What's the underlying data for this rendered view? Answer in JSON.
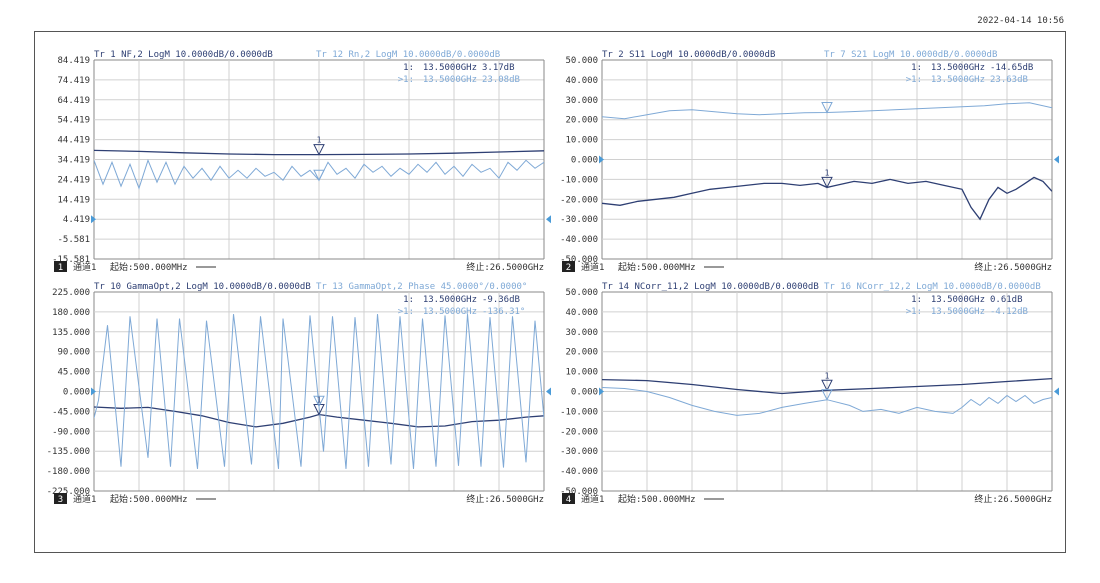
{
  "timestamp": "2022-04-14 10:56",
  "colors": {
    "dark": "#2e3f73",
    "light": "#7fa9d6",
    "grid": "#d0d0d0",
    "text": "#333333",
    "marker_arrow": "#4a9bd8"
  },
  "chart_data": [
    {
      "type": "line",
      "panel_number": "1",
      "channel_label": "通道1",
      "start_label": "起始:500.000MHz",
      "stop_label": "终止:26.5000GHz",
      "trace_dark_header": "Tr 1  NF,2 LogM 10.0000dB/0.0000dB",
      "trace_light_header": "Tr 12 Rn,2 LogM 10.0000dB/0.0000dB",
      "marker_dark": {
        "id": "1:",
        "freq": "13.5000GHz",
        "value": "3.17dB"
      },
      "marker_light": {
        "id": ">1:",
        "freq": "13.5000GHz",
        "value": "23.08dB"
      },
      "y_ticks": [
        "84.419",
        "74.419",
        "64.419",
        "54.419",
        "44.419",
        "34.419",
        "24.419",
        "14.419",
        "4.419",
        "-5.581",
        "-15.581"
      ],
      "ylim": [
        -15.581,
        84.419
      ],
      "reference_index": 8,
      "xlim": [
        0,
        100
      ],
      "series": [
        {
          "name": "Tr 1",
          "shade": "dark",
          "x": [
            0,
            10,
            20,
            30,
            40,
            50,
            60,
            70,
            80,
            90,
            100
          ],
          "y": [
            39.0,
            38.5,
            37.8,
            37.2,
            36.9,
            36.9,
            37.0,
            37.2,
            37.6,
            38.2,
            38.8
          ]
        },
        {
          "name": "Tr 12",
          "shade": "light",
          "x": [
            0,
            2,
            4,
            6,
            8,
            10,
            12,
            14,
            16,
            18,
            20,
            22,
            24,
            26,
            28,
            30,
            32,
            34,
            36,
            38,
            40,
            42,
            44,
            46,
            48,
            50,
            52,
            54,
            56,
            58,
            60,
            62,
            64,
            66,
            68,
            70,
            72,
            74,
            76,
            78,
            80,
            82,
            84,
            86,
            88,
            90,
            92,
            94,
            96,
            98,
            100
          ],
          "y": [
            34,
            22,
            33,
            21,
            32,
            20,
            34,
            23,
            33,
            22,
            31,
            25,
            30,
            24,
            31,
            25,
            29,
            25,
            30,
            26,
            28,
            24,
            31,
            26,
            29,
            24,
            33,
            27,
            30,
            25,
            32,
            28,
            31,
            26,
            30,
            27,
            32,
            28,
            33,
            27,
            31,
            26,
            32,
            28,
            30,
            25,
            33,
            29,
            34,
            30,
            33
          ]
        }
      ],
      "marker_x": 50
    },
    {
      "type": "line",
      "panel_number": "2",
      "channel_label": "通道1",
      "start_label": "起始:500.000MHz",
      "stop_label": "终止:26.5000GHz",
      "trace_dark_header": "Tr 2  S11 LogM 10.0000dB/0.0000dB",
      "trace_light_header": "Tr 7  S21 LogM 10.0000dB/0.0000dB",
      "marker_dark": {
        "id": "1:",
        "freq": "13.5000GHz",
        "value": "-14.65dB"
      },
      "marker_light": {
        "id": ">1:",
        "freq": "13.5000GHz",
        "value": "23.63dB"
      },
      "y_ticks": [
        "50.000",
        "40.000",
        "30.000",
        "20.000",
        "10.000",
        "0.000",
        "-10.000",
        "-20.000",
        "-30.000",
        "-40.000",
        "-50.000"
      ],
      "ylim": [
        -50,
        50
      ],
      "reference_index": 5,
      "xlim": [
        0,
        100
      ],
      "series": [
        {
          "name": "Tr 2",
          "shade": "dark",
          "x": [
            0,
            4,
            8,
            12,
            16,
            20,
            24,
            28,
            32,
            36,
            40,
            44,
            48,
            50,
            52,
            56,
            60,
            64,
            68,
            72,
            76,
            80,
            82,
            84,
            86,
            88,
            90,
            92,
            94,
            96,
            98,
            100
          ],
          "y": [
            -22,
            -23,
            -21,
            -20,
            -19,
            -17,
            -15,
            -14,
            -13,
            -12,
            -12,
            -13,
            -12,
            -14,
            -13,
            -11,
            -12,
            -10,
            -12,
            -11,
            -13,
            -15,
            -24,
            -30,
            -20,
            -14,
            -17,
            -15,
            -12,
            -9,
            -11,
            -16
          ]
        },
        {
          "name": "Tr 7",
          "shade": "light",
          "x": [
            0,
            5,
            10,
            15,
            20,
            25,
            30,
            35,
            40,
            45,
            50,
            55,
            60,
            65,
            70,
            75,
            80,
            85,
            90,
            95,
            100
          ],
          "y": [
            21.5,
            20.5,
            22.5,
            24.5,
            25.0,
            24.0,
            23.0,
            22.5,
            23.0,
            23.5,
            23.6,
            24.0,
            24.5,
            25.0,
            25.5,
            26.0,
            26.5,
            27.0,
            28.0,
            28.5,
            26.0
          ]
        }
      ],
      "marker_x": 50
    },
    {
      "type": "line",
      "panel_number": "3",
      "channel_label": "通道1",
      "start_label": "起始:500.000MHz",
      "stop_label": "终止:26.5000GHz",
      "trace_dark_header": "Tr 10 GammaOpt,2 LogM 10.0000dB/0.0000dB",
      "trace_light_header": "Tr 13 GammaOpt,2 Phase 45.0000°/0.0000°",
      "marker_dark": {
        "id": "1:",
        "freq": "13.5000GHz",
        "value": "-9.36dB"
      },
      "marker_light": {
        "id": ">1:",
        "freq": "13.5000GHz",
        "value": "-136.31°"
      },
      "y_ticks": [
        "225.000",
        "180.000",
        "135.000",
        "90.000",
        "45.000",
        "0.000",
        "-45.000",
        "-90.000",
        "-135.000",
        "-180.000",
        "-225.000"
      ],
      "ylim": [
        -225,
        225
      ],
      "reference_index": 5,
      "xlim": [
        0,
        100
      ],
      "series": [
        {
          "name": "Tr 10",
          "shade": "dark",
          "x": [
            0,
            6,
            12,
            18,
            24,
            30,
            36,
            42,
            48,
            50,
            54,
            60,
            66,
            72,
            78,
            84,
            90,
            96,
            100
          ],
          "y": [
            -35,
            -38,
            -36,
            -45,
            -55,
            -70,
            -80,
            -72,
            -58,
            -52,
            -58,
            -65,
            -72,
            -80,
            -78,
            -68,
            -65,
            -58,
            -55
          ]
        },
        {
          "name": "Tr 13",
          "shade": "light",
          "x": [
            0,
            1,
            3,
            6,
            8,
            12,
            14,
            17,
            19,
            23,
            25,
            29,
            31,
            35,
            37,
            41,
            42,
            46,
            48,
            51,
            53,
            56,
            58,
            61,
            63,
            66,
            68,
            71,
            73,
            76,
            78,
            81,
            83,
            86,
            88,
            91,
            93,
            96,
            98,
            100
          ],
          "y": [
            -60,
            -20,
            150,
            -170,
            170,
            -150,
            165,
            -170,
            165,
            -175,
            160,
            -170,
            175,
            -165,
            170,
            -175,
            165,
            -170,
            172,
            -136,
            170,
            -175,
            168,
            -170,
            175,
            -165,
            170,
            -175,
            165,
            -170,
            172,
            -168,
            175,
            -170,
            168,
            -172,
            170,
            -160,
            160,
            -60
          ]
        }
      ],
      "marker_x": 50
    },
    {
      "type": "line",
      "panel_number": "4",
      "channel_label": "通道1",
      "start_label": "起始:500.000MHz",
      "stop_label": "终止:26.5000GHz",
      "trace_dark_header": "Tr 14 NCorr_11,2 LogM 10.0000dB/0.0000dB",
      "trace_light_header": "Tr 16 NCorr_12,2 LogM 10.0000dB/0.0000dB",
      "marker_dark": {
        "id": "1:",
        "freq": "13.5000GHz",
        "value": "0.61dB"
      },
      "marker_light": {
        "id": ">1:",
        "freq": "13.5000GHz",
        "value": "-4.12dB"
      },
      "y_ticks": [
        "50.000",
        "40.000",
        "30.000",
        "20.000",
        "10.000",
        "0.000",
        "-10.000",
        "-20.000",
        "-30.000",
        "-40.000",
        "-50.000"
      ],
      "ylim": [
        -50,
        50
      ],
      "reference_index": 5,
      "xlim": [
        0,
        100
      ],
      "series": [
        {
          "name": "Tr 14",
          "shade": "dark",
          "x": [
            0,
            10,
            20,
            30,
            40,
            50,
            60,
            70,
            80,
            90,
            100
          ],
          "y": [
            6,
            5.5,
            3.5,
            1.0,
            -1.0,
            0.6,
            1.5,
            2.5,
            3.5,
            5.0,
            6.5
          ]
        },
        {
          "name": "Tr 16",
          "shade": "light",
          "x": [
            0,
            5,
            10,
            15,
            20,
            25,
            30,
            35,
            40,
            45,
            50,
            55,
            58,
            62,
            66,
            70,
            74,
            78,
            80,
            82,
            84,
            86,
            88,
            90,
            92,
            94,
            96,
            98,
            100
          ],
          "y": [
            2,
            1.5,
            0,
            -3,
            -7,
            -10,
            -12,
            -11,
            -8,
            -6,
            -4.1,
            -7,
            -10,
            -9,
            -11,
            -8,
            -10,
            -11,
            -8,
            -4,
            -7,
            -3,
            -6,
            -2,
            -5,
            -2,
            -6,
            -4,
            -3
          ]
        }
      ],
      "marker_x": 50
    }
  ]
}
